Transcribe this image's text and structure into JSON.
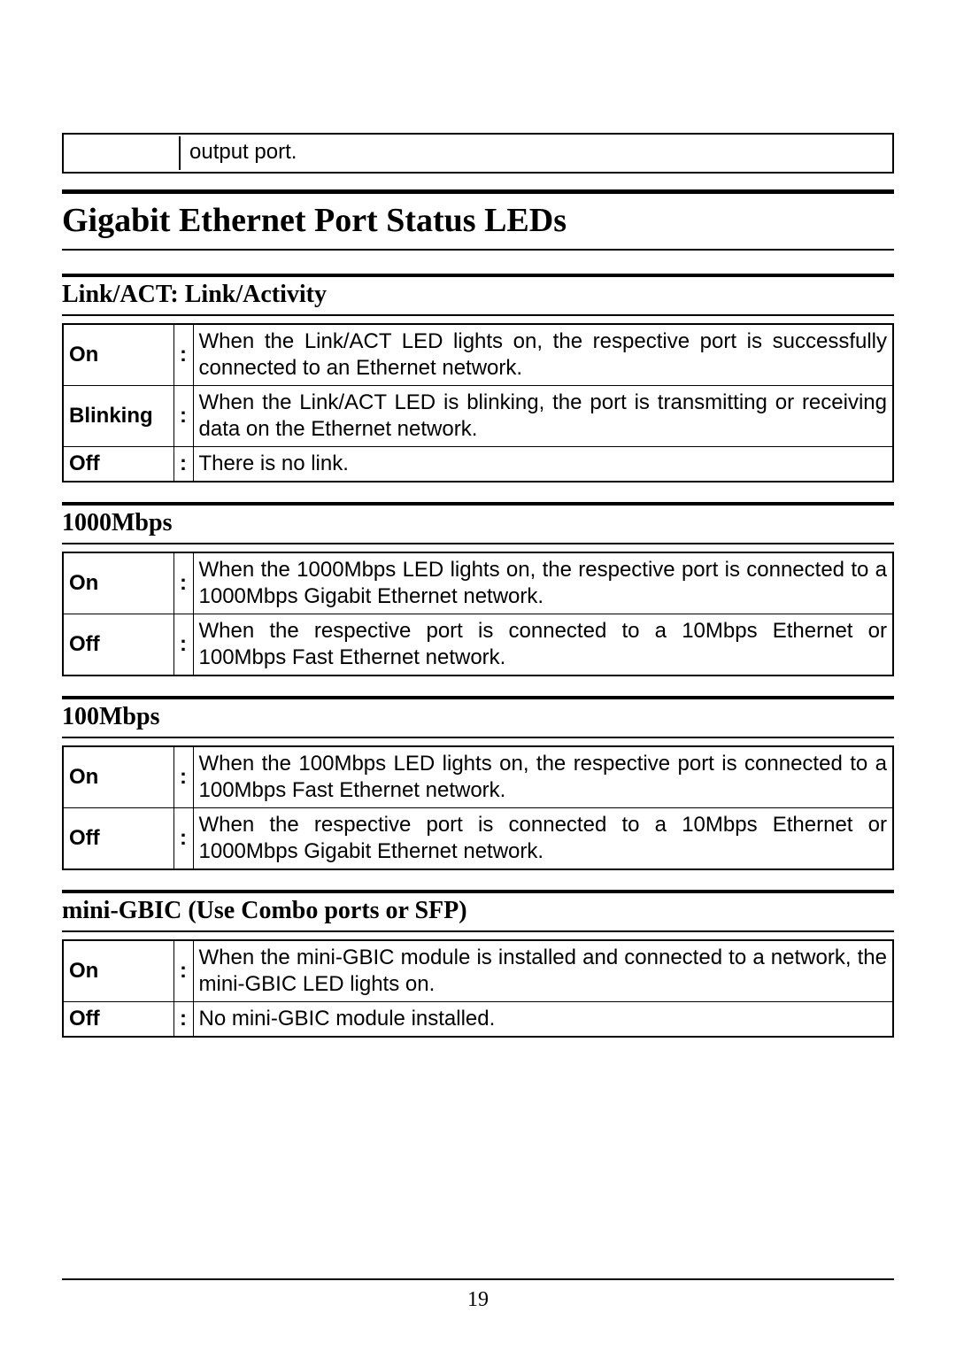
{
  "page_number": "19",
  "top_remnant_text": "output port.",
  "main_heading": "Gigabit Ethernet Port Status LEDs",
  "sections": [
    {
      "title": "Link/ACT: Link/Activity",
      "rows": [
        {
          "state": "On",
          "desc": "When the Link/ACT LED lights on, the respective port is successfully connected to an Ethernet network."
        },
        {
          "state": "Blinking",
          "desc": "When the Link/ACT LED is blinking, the port is transmitting or receiving data on the Ethernet network."
        },
        {
          "state": "Off",
          "desc": "There is no link."
        }
      ]
    },
    {
      "title": "1000Mbps",
      "rows": [
        {
          "state": "On",
          "desc": "When the 1000Mbps LED lights on, the respective port is connected to a 1000Mbps Gigabit Ethernet network."
        },
        {
          "state": "Off",
          "desc": "When the respective port is connected to a 10Mbps Ethernet or 100Mbps Fast Ethernet network."
        }
      ]
    },
    {
      "title": "100Mbps",
      "rows": [
        {
          "state": "On",
          "desc": "When the 100Mbps LED lights on, the respective port is connected to a 100Mbps Fast Ethernet network."
        },
        {
          "state": "Off",
          "desc": "When the respective port is connected to a 10Mbps Ethernet or 1000Mbps Gigabit Ethernet network."
        }
      ]
    },
    {
      "title": "mini-GBIC (Use Combo ports or SFP)",
      "rows": [
        {
          "state": "On",
          "desc": "When the mini-GBIC module is installed and connected to a network, the mini-GBIC LED lights on."
        },
        {
          "state": "Off",
          "desc": "No mini-GBIC module installed."
        }
      ]
    }
  ],
  "colon": ":"
}
